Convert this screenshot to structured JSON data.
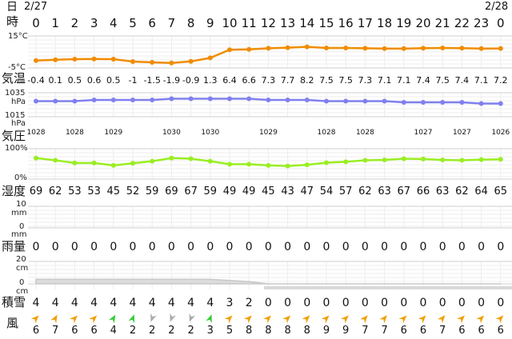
{
  "header": {
    "day_label": "日",
    "hour_label": "時",
    "date_start": "2/27",
    "date_end": "2/28"
  },
  "hours": [
    "0",
    "1",
    "2",
    "3",
    "4",
    "5",
    "6",
    "7",
    "8",
    "9",
    "10",
    "11",
    "12",
    "13",
    "14",
    "15",
    "16",
    "17",
    "18",
    "19",
    "20",
    "21",
    "22",
    "23",
    "0"
  ],
  "temperature": {
    "label": "気温",
    "axis_top": "15°C",
    "axis_bottom": "-5°C",
    "color": "#f08c00",
    "values": [
      "-0.4",
      "0.1",
      "0.5",
      "0.6",
      "0.5",
      "-1",
      "-1.5",
      "-1.9",
      "-0.9",
      "1.3",
      "6.4",
      "6.6",
      "7.3",
      "7.7",
      "8.2",
      "7.5",
      "7.5",
      "7.3",
      "7.1",
      "7.1",
      "7.4",
      "7.5",
      "7.4",
      "7.1",
      "7.2"
    ]
  },
  "pressure": {
    "label": "気圧",
    "axis_top": "1035",
    "axis_top_unit": "hPa",
    "axis_bottom": "1015",
    "axis_bottom_unit": "hPa",
    "color": "#8080f0",
    "values": [
      "1028",
      "1028",
      "1029",
      "1030",
      "1030",
      "1029",
      "1028",
      "1028",
      "1027",
      "1027",
      "1026"
    ],
    "series": [
      1028,
      1028,
      1028,
      1029,
      1029,
      1029,
      1029,
      1030,
      1030,
      1030,
      1030,
      1030,
      1029,
      1029,
      1029,
      1028,
      1028,
      1028,
      1028,
      1027,
      1027,
      1027,
      1027,
      1026,
      1026
    ]
  },
  "humidity": {
    "label": "湿度",
    "axis_top": "100%",
    "axis_bottom": "0%",
    "color": "#99ee22",
    "values": [
      "69",
      "62",
      "53",
      "53",
      "45",
      "52",
      "59",
      "69",
      "67",
      "59",
      "49",
      "49",
      "45",
      "43",
      "47",
      "54",
      "57",
      "62",
      "63",
      "67",
      "66",
      "63",
      "62",
      "64",
      "65"
    ]
  },
  "rain": {
    "label": "雨量",
    "axis_top": "10",
    "axis_top_unit": "mm",
    "axis_bottom": "0",
    "axis_bottom_unit": "mm",
    "values": [
      "0",
      "0",
      "0",
      "0",
      "0",
      "0",
      "0",
      "0",
      "0",
      "0",
      "0",
      "0",
      "0",
      "0",
      "0",
      "0",
      "0",
      "0",
      "0",
      "0",
      "0",
      "0",
      "0",
      "0",
      "0"
    ]
  },
  "snow": {
    "label": "積雪",
    "axis_top": "20",
    "axis_top_unit": "cm",
    "axis_bottom": "0",
    "axis_bottom_unit": "cm",
    "values": [
      "4",
      "4",
      "4",
      "4",
      "4",
      "4",
      "4",
      "4",
      "4",
      "4",
      "3",
      "2",
      "0",
      "0",
      "0",
      "0",
      "0",
      "0",
      "0",
      "0",
      "0",
      "0",
      "0",
      "0",
      "0"
    ]
  },
  "wind": {
    "label": "風",
    "values": [
      "6",
      "7",
      "6",
      "6",
      "4",
      "2",
      "2",
      "2",
      "2",
      "3",
      "5",
      "8",
      "8",
      "8",
      "8",
      "9",
      "9",
      "7",
      "7",
      "6",
      "6",
      "7",
      "6",
      "6",
      "6"
    ]
  }
}
